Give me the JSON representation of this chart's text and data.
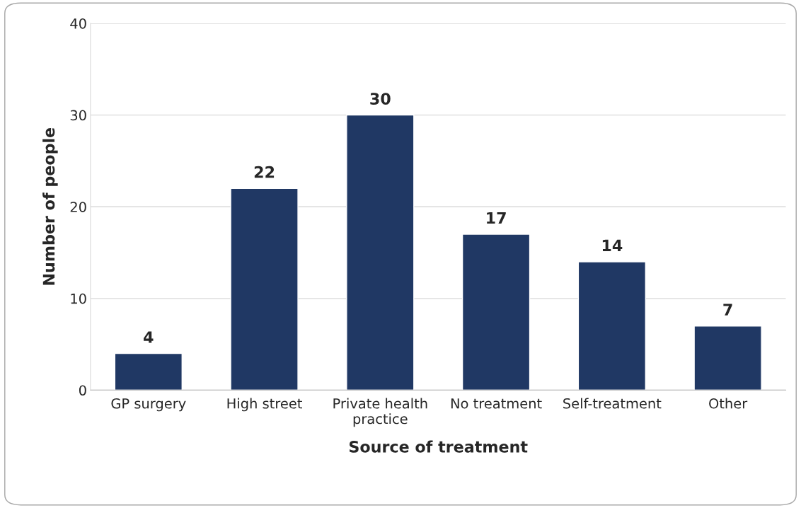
{
  "chart_data": {
    "type": "bar",
    "xlabel": "Source of treatment",
    "ylabel": "Number of people",
    "categories": [
      "GP surgery",
      "High street",
      "Private health\npractice",
      "No treatment",
      "Self-treatment",
      "Other"
    ],
    "values": [
      4,
      22,
      30,
      17,
      14,
      7
    ],
    "color": "#203864",
    "ylim": [
      0,
      40
    ],
    "yticks": [
      0,
      10,
      20,
      30,
      40
    ],
    "grid": "y",
    "data_labels": true
  }
}
